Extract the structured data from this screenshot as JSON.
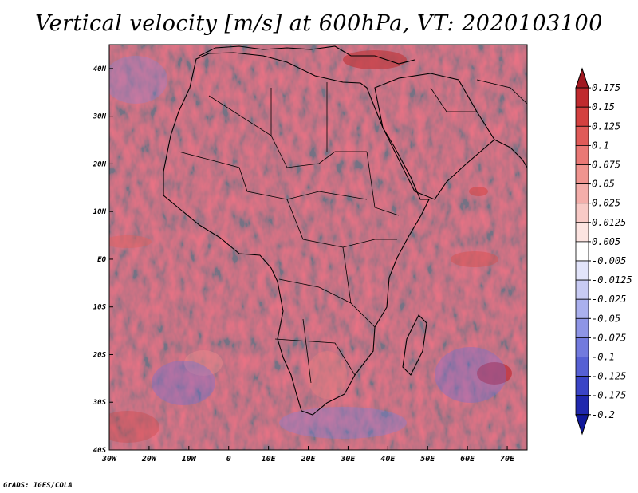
{
  "title": "Vertical velocity [m/s] at 600hPa, VT: 2020103100",
  "credit": "GrADS: IGES/COLA",
  "map": {
    "region": "Africa",
    "lon_range": [
      -30,
      75
    ],
    "lat_range": [
      -40,
      45
    ],
    "lon_labels": [
      "30W",
      "20W",
      "10W",
      "0",
      "10E",
      "20E",
      "30E",
      "40E",
      "50E",
      "60E",
      "70E"
    ],
    "lon_values": [
      -30,
      -20,
      -10,
      0,
      10,
      20,
      30,
      40,
      50,
      60,
      70
    ],
    "lat_labels": [
      "40N",
      "30N",
      "20N",
      "10N",
      "EQ",
      "10S",
      "20S",
      "30S",
      "40S"
    ],
    "lat_values": [
      40,
      30,
      20,
      10,
      0,
      -10,
      -20,
      -30,
      -40
    ]
  },
  "colorbar": {
    "labels": [
      "0.175",
      "0.15",
      "0.125",
      "0.1",
      "0.075",
      "0.05",
      "0.025",
      "0.0125",
      "0.005",
      "-0.005",
      "-0.0125",
      "-0.025",
      "-0.05",
      "-0.075",
      "-0.1",
      "-0.125",
      "-0.175",
      "-0.2"
    ],
    "colors": [
      "#a01820",
      "#c02a2e",
      "#d4403f",
      "#e05a58",
      "#ea7875",
      "#f0948f",
      "#f4aeaa",
      "#f8cac6",
      "#fce4e1",
      "#ffffff",
      "#e2e4fa",
      "#c8cbf4",
      "#aab0ee",
      "#8e95e6",
      "#727ade",
      "#5660d4",
      "#3a44c6",
      "#2028ae",
      "#10189a"
    ]
  }
}
